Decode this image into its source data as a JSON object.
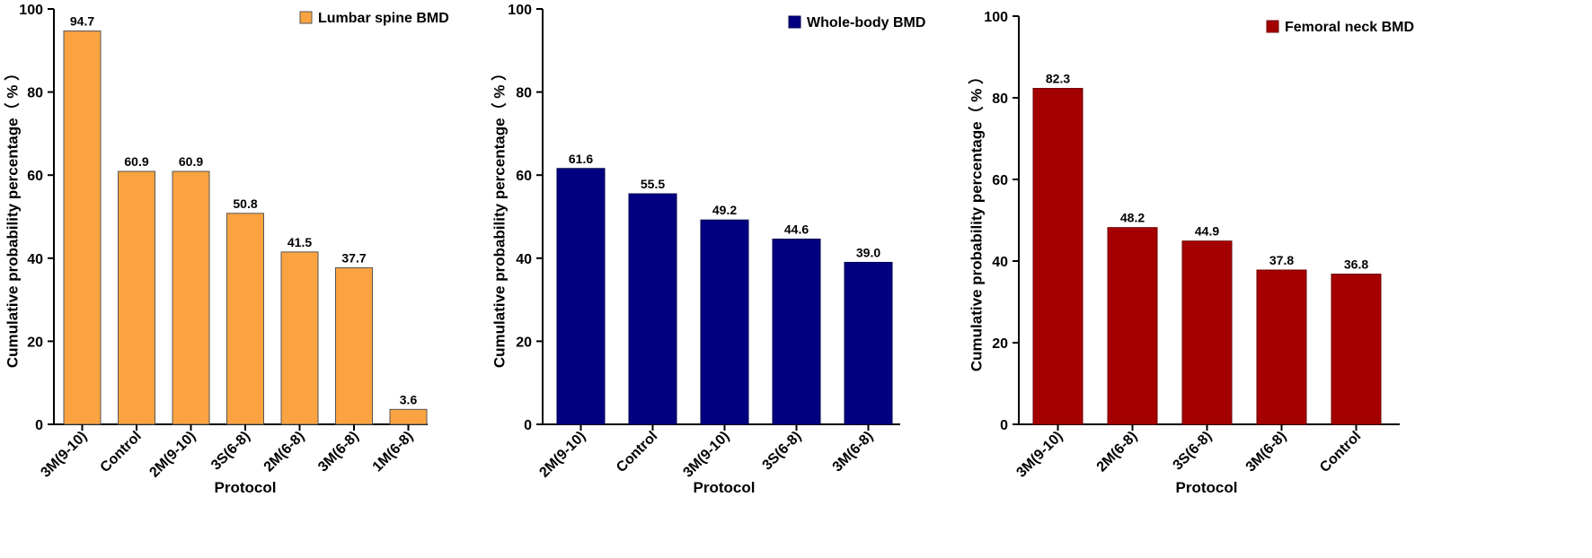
{
  "chart_data": [
    {
      "type": "bar",
      "categories": [
        "3M(9-10)",
        "Control",
        "2M(9-10)",
        "3S(6-8)",
        "2M(6-8)",
        "3M(6-8)",
        "1M(6-8)"
      ],
      "series": [
        {
          "name": "Lumbar spine BMD",
          "values": [
            94.7,
            60.9,
            60.9,
            50.8,
            41.5,
            37.7,
            3.6
          ],
          "labels": [
            "94.7",
            "60.9",
            "60.9",
            "50.8",
            "41.5",
            "37.7",
            "3.6"
          ]
        }
      ],
      "xlabel": "Protocol",
      "ylabel": "Cumulative probability percentage（ % ）",
      "ylim": [
        0,
        100
      ],
      "yticks": [
        0,
        20,
        40,
        60,
        80,
        100
      ],
      "color": "#FBA341",
      "edge_color": "#555555",
      "legend_position": "top-right",
      "grid": false
    },
    {
      "type": "bar",
      "categories": [
        "2M(9-10)",
        "Control",
        "3M(9-10)",
        "3S(6-8)",
        "3M(6-8)"
      ],
      "series": [
        {
          "name": "Whole-body BMD",
          "values": [
            61.6,
            55.5,
            49.2,
            44.6,
            39.0
          ],
          "labels": [
            "61.6",
            "55.5",
            "49.2",
            "44.6",
            "39.0"
          ]
        }
      ],
      "xlabel": "Protocol",
      "ylabel": "Cumulative probability percentage（ % ）",
      "ylim": [
        0,
        100
      ],
      "yticks": [
        0,
        20,
        40,
        60,
        80,
        100
      ],
      "color": "#000080",
      "edge_color": "#000050",
      "legend_position": "top-right",
      "grid": false
    },
    {
      "type": "bar",
      "categories": [
        "3M(9-10)",
        "2M(6-8)",
        "3S(6-8)",
        "3M(6-8)",
        "Control"
      ],
      "series": [
        {
          "name": "Femoral neck BMD",
          "values": [
            82.3,
            48.2,
            44.9,
            37.8,
            36.8
          ],
          "labels": [
            "82.3",
            "48.2",
            "44.9",
            "37.8",
            "36.8"
          ]
        }
      ],
      "xlabel": "Protocol",
      "ylabel": "Cumulative probability percentage（ % ）",
      "ylim": [
        0,
        100
      ],
      "yticks": [
        0,
        20,
        40,
        60,
        80,
        100
      ],
      "color": "#A50000",
      "edge_color": "#6E0000",
      "legend_position": "top-right",
      "grid": false
    }
  ]
}
